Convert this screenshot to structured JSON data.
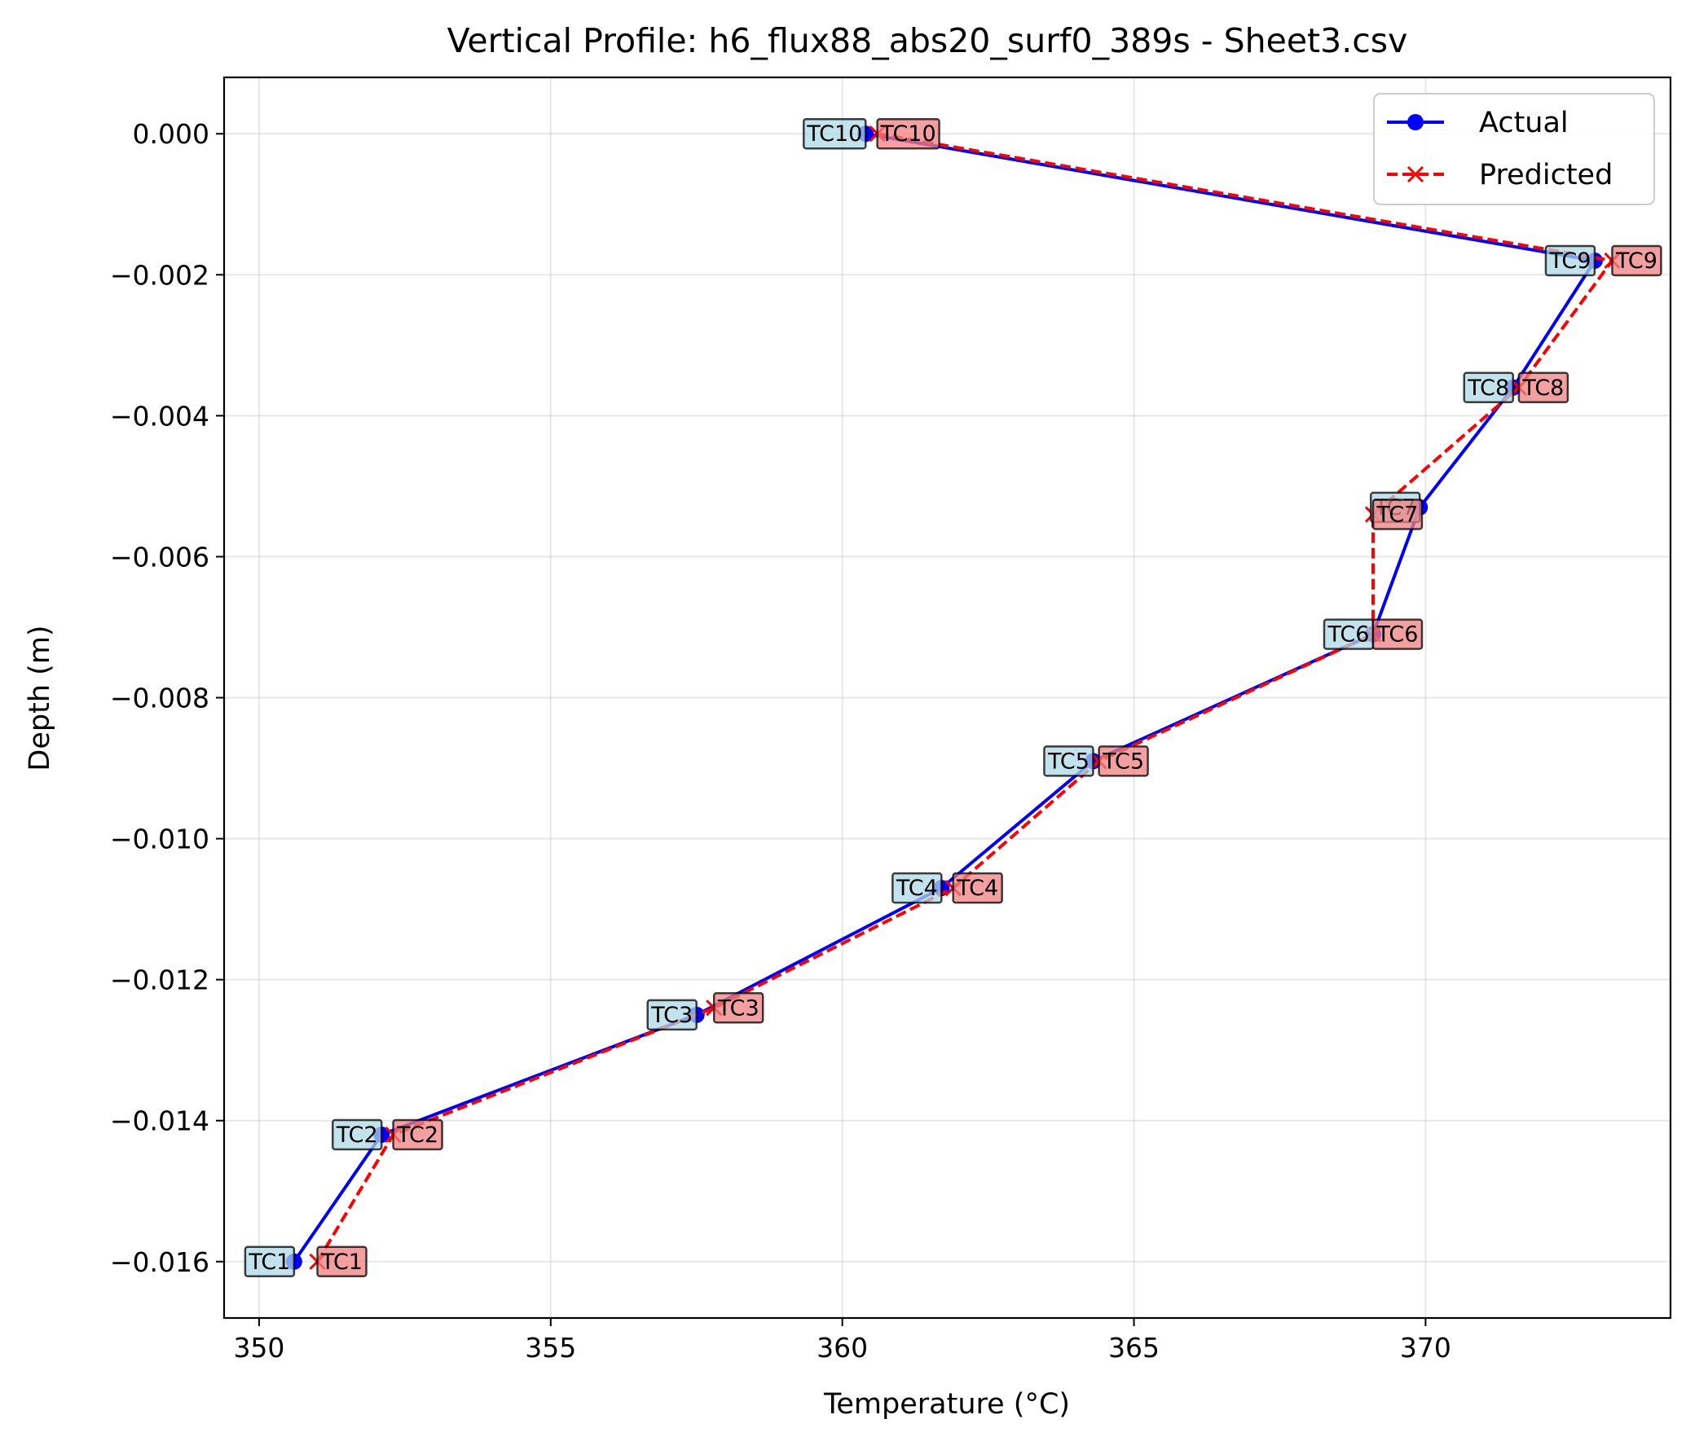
{
  "chart_data": {
    "type": "line",
    "title": "Vertical Profile: h6_flux88_abs20_surf0_389s - Sheet3.csv",
    "xlabel": "Temperature (°C)",
    "ylabel": "Depth (m)",
    "xlim": [
      349.4,
      374.2
    ],
    "ylim": [
      -0.0168,
      0.0008
    ],
    "xticks": [
      350,
      355,
      360,
      365,
      370
    ],
    "xtick_labels": [
      "350",
      "355",
      "360",
      "365",
      "370"
    ],
    "yticks": [
      0.0,
      -0.002,
      -0.004,
      -0.006,
      -0.008,
      -0.01,
      -0.012,
      -0.014,
      -0.016
    ],
    "ytick_labels": [
      "0.000",
      "−0.002",
      "−0.004",
      "−0.006",
      "−0.008",
      "−0.010",
      "−0.012",
      "−0.014",
      "−0.016"
    ],
    "grid": true,
    "legend_position": "top-right",
    "series": [
      {
        "name": "Actual",
        "color": "#0000ff",
        "line_style": "solid",
        "marker": "circle",
        "label_bg": "#add8e6",
        "points": [
          {
            "label": "TC1",
            "x": 350.6,
            "y": -0.016
          },
          {
            "label": "TC2",
            "x": 352.1,
            "y": -0.0142
          },
          {
            "label": "TC3",
            "x": 357.5,
            "y": -0.0125
          },
          {
            "label": "TC4",
            "x": 361.7,
            "y": -0.0107
          },
          {
            "label": "TC5",
            "x": 364.3,
            "y": -0.0089
          },
          {
            "label": "TC6",
            "x": 369.1,
            "y": -0.0071
          },
          {
            "label": "TC7",
            "x": 369.9,
            "y": -0.0053
          },
          {
            "label": "TC8",
            "x": 371.5,
            "y": -0.0036
          },
          {
            "label": "TC9",
            "x": 372.9,
            "y": -0.0018
          },
          {
            "label": "TC10",
            "x": 360.4,
            "y": 0.0
          }
        ]
      },
      {
        "name": "Predicted",
        "color": "#ff0000",
        "line_style": "dashed",
        "marker": "x",
        "label_bg": "#f08080",
        "points": [
          {
            "label": "TC1",
            "x": 351.0,
            "y": -0.016
          },
          {
            "label": "TC2",
            "x": 352.3,
            "y": -0.0142
          },
          {
            "label": "TC3",
            "x": 357.8,
            "y": -0.0124
          },
          {
            "label": "TC4",
            "x": 361.9,
            "y": -0.0107
          },
          {
            "label": "TC5",
            "x": 364.4,
            "y": -0.0089
          },
          {
            "label": "TC6",
            "x": 369.1,
            "y": -0.0071
          },
          {
            "label": "TC7",
            "x": 369.1,
            "y": -0.0054
          },
          {
            "label": "TC8",
            "x": 371.6,
            "y": -0.0036
          },
          {
            "label": "TC9",
            "x": 373.2,
            "y": -0.0018
          },
          {
            "label": "TC10",
            "x": 360.6,
            "y": 0.0
          }
        ]
      }
    ]
  }
}
